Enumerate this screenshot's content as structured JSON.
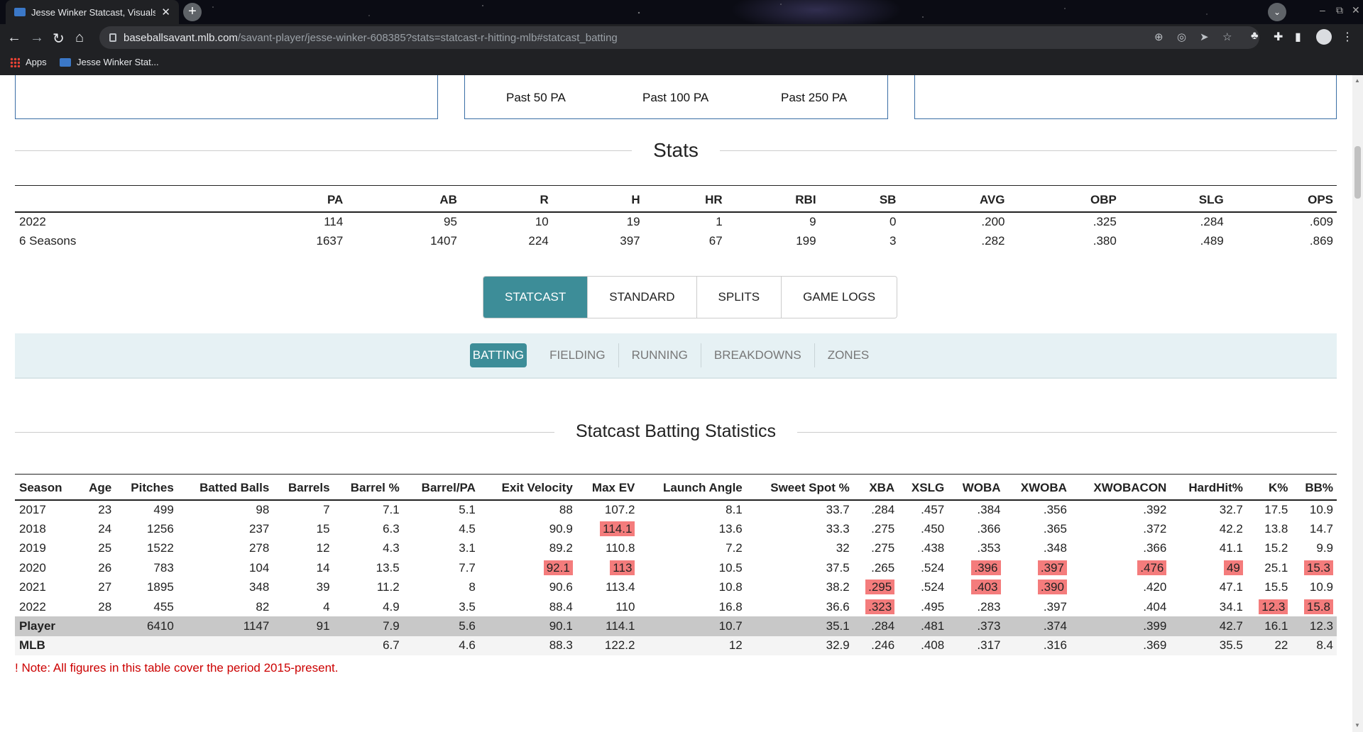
{
  "browser": {
    "tab_title": "Jesse Winker Statcast, Visuals",
    "url_host": "baseballsavant.mlb.com",
    "url_path": "/savant-player/jesse-winker-608385?stats=statcast-r-hitting-mlb#statcast_batting",
    "bookmarks": [
      {
        "label": "Apps",
        "icon": "apps-grid-icon"
      },
      {
        "label": "Jesse Winker Stat...",
        "icon": "savant-favicon"
      }
    ]
  },
  "rolling": {
    "labels": [
      "Past 50 PA",
      "Past 100 PA",
      "Past 250 PA"
    ]
  },
  "stats": {
    "title": "Stats",
    "headers": [
      "",
      "PA",
      "AB",
      "R",
      "H",
      "HR",
      "RBI",
      "SB",
      "AVG",
      "OBP",
      "SLG",
      "OPS"
    ],
    "rows": [
      [
        "2022",
        "114",
        "95",
        "10",
        "19",
        "1",
        "9",
        "0",
        ".200",
        ".325",
        ".284",
        ".609"
      ],
      [
        "6 Seasons",
        "1637",
        "1407",
        "224",
        "397",
        "67",
        "199",
        "3",
        ".282",
        ".380",
        ".489",
        ".869"
      ]
    ]
  },
  "main_tabs": [
    "STATCAST",
    "STANDARD",
    "SPLITS",
    "GAME LOGS"
  ],
  "main_tab_active": "STATCAST",
  "sub_tabs": [
    "BATTING",
    "FIELDING",
    "RUNNING",
    "BREAKDOWNS",
    "ZONES"
  ],
  "sub_tab_active": "BATTING",
  "statcast": {
    "title": "Statcast Batting Statistics",
    "headers": [
      "Season",
      "Age",
      "Pitches",
      "Batted Balls",
      "Barrels",
      "Barrel %",
      "Barrel/PA",
      "Exit Velocity",
      "Max EV",
      "Launch Angle",
      "Sweet Spot %",
      "XBA",
      "XSLG",
      "WOBA",
      "XWOBA",
      "XWOBACON",
      "HardHit%",
      "K%",
      "BB%"
    ],
    "rows": [
      {
        "cells": [
          "2017",
          "23",
          "499",
          "98",
          "7",
          "7.1",
          "5.1",
          "88",
          "107.2",
          "8.1",
          "33.7",
          ".284",
          ".457",
          ".384",
          ".356",
          ".392",
          "32.7",
          "17.5",
          "10.9"
        ],
        "hl": []
      },
      {
        "cells": [
          "2018",
          "24",
          "1256",
          "237",
          "15",
          "6.3",
          "4.5",
          "90.9",
          "114.1",
          "13.6",
          "33.3",
          ".275",
          ".450",
          ".366",
          ".365",
          ".372",
          "42.2",
          "13.8",
          "14.7"
        ],
        "hl": [
          8
        ]
      },
      {
        "cells": [
          "2019",
          "25",
          "1522",
          "278",
          "12",
          "4.3",
          "3.1",
          "89.2",
          "110.8",
          "7.2",
          "32",
          ".275",
          ".438",
          ".353",
          ".348",
          ".366",
          "41.1",
          "15.2",
          "9.9"
        ],
        "hl": []
      },
      {
        "cells": [
          "2020",
          "26",
          "783",
          "104",
          "14",
          "13.5",
          "7.7",
          "92.1",
          "113",
          "10.5",
          "37.5",
          ".265",
          ".524",
          ".396",
          ".397",
          ".476",
          "49",
          "25.1",
          "15.3"
        ],
        "hl": [
          7,
          8,
          13,
          14,
          15,
          16,
          18
        ]
      },
      {
        "cells": [
          "2021",
          "27",
          "1895",
          "348",
          "39",
          "11.2",
          "8",
          "90.6",
          "113.4",
          "10.8",
          "38.2",
          ".295",
          ".524",
          ".403",
          ".390",
          ".420",
          "47.1",
          "15.5",
          "10.9"
        ],
        "hl": [
          11,
          13,
          14
        ]
      },
      {
        "cells": [
          "2022",
          "28",
          "455",
          "82",
          "4",
          "4.9",
          "3.5",
          "88.4",
          "110",
          "16.8",
          "36.6",
          ".323",
          ".495",
          ".283",
          ".397",
          ".404",
          "34.1",
          "12.3",
          "15.8"
        ],
        "hl": [
          11,
          17,
          18
        ]
      }
    ],
    "player_row": [
      "Player",
      "",
      "6410",
      "1147",
      "91",
      "7.9",
      "5.6",
      "90.1",
      "114.1",
      "10.7",
      "35.1",
      ".284",
      ".481",
      ".373",
      ".374",
      ".399",
      "42.7",
      "16.1",
      "12.3"
    ],
    "mlb_row": [
      "MLB",
      "",
      "",
      "",
      "",
      "6.7",
      "4.6",
      "88.3",
      "122.2",
      "12",
      "32.9",
      ".246",
      ".408",
      ".317",
      ".316",
      ".369",
      "35.5",
      "22",
      "8.4"
    ],
    "highlight_color": "#f47c7c"
  },
  "note": "! Note: All figures in this table cover the period 2015-present.",
  "colors": {
    "accent": "#3d8d98",
    "subnav_bg": "#e6f1f4",
    "note": "#cc0000"
  }
}
